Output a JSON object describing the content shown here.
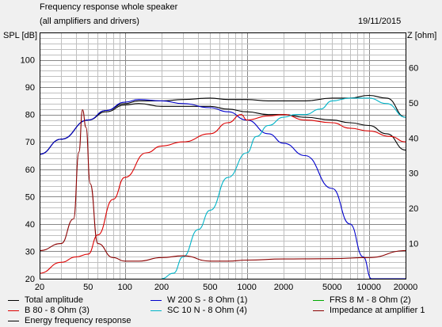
{
  "header": {
    "title": "Frequency response whole speaker",
    "subtitle": "(all amplifiers and drivers)",
    "date": "19/11/2015"
  },
  "chart_data": {
    "type": "line",
    "title": "Frequency response whole speaker",
    "subtitle": "(all amplifiers and drivers)",
    "ylabel": "SPL [dB]",
    "y2label": "Z [ohm]",
    "xlabel": "",
    "x_scale": "log",
    "xlim": [
      20,
      20000
    ],
    "ylim": [
      20,
      110
    ],
    "y2lim": [
      0,
      70
    ],
    "x_ticks": [
      20,
      50,
      100,
      200,
      500,
      1000,
      2000,
      5000,
      10000,
      20000
    ],
    "x_tick_labels": [
      "20",
      "50",
      "100",
      "200",
      "500",
      "1000",
      "2000",
      "5000",
      "10000",
      "20000"
    ],
    "y_ticks": [
      20,
      30,
      40,
      50,
      60,
      70,
      80,
      90,
      100
    ],
    "y_tick_labels": [
      "20",
      "30",
      "40",
      "50",
      "60",
      "70",
      "80",
      "90",
      "100"
    ],
    "y2_ticks": [
      10,
      20,
      30,
      40,
      50,
      60
    ],
    "y2_tick_labels": [
      "10",
      "20",
      "30",
      "40",
      "50",
      "60"
    ],
    "grid": true,
    "legend_position": "bottom",
    "series": [
      {
        "name": "Total amplitude",
        "color": "#000000",
        "axis": "left",
        "x": [
          20,
          30,
          50,
          70,
          100,
          130,
          200,
          300,
          500,
          700,
          1000,
          1500,
          2000,
          3000,
          5000,
          7000,
          10000,
          14000,
          20000
        ],
        "y": [
          65.5,
          71,
          78,
          81.5,
          84,
          85,
          85,
          85.5,
          86,
          85.5,
          85.5,
          85,
          85,
          85,
          86,
          86,
          87,
          86,
          79
        ]
      },
      {
        "name": "Energy frequency response",
        "color": "#000000",
        "axis": "left",
        "x": [
          20,
          30,
          50,
          70,
          100,
          130,
          200,
          300,
          500,
          700,
          1000,
          1500,
          2000,
          3000,
          5000,
          7000,
          10000,
          14000,
          20000
        ],
        "y": [
          65.5,
          71,
          78,
          81,
          83.5,
          84,
          83,
          83,
          83,
          82,
          81,
          80,
          80,
          79,
          78,
          77,
          76,
          73,
          67
        ]
      },
      {
        "name": "W 200 S - 8 Ohm (1)",
        "color": "#0000cc",
        "axis": "left",
        "x": [
          20,
          30,
          50,
          70,
          100,
          130,
          200,
          300,
          500,
          700,
          1000,
          1500,
          2000,
          3000,
          5000,
          7000,
          9000,
          10500,
          20000
        ],
        "y": [
          65.5,
          71,
          78,
          81.5,
          84.5,
          85.5,
          85,
          84,
          82.5,
          81,
          78,
          73,
          69.5,
          65,
          53,
          40,
          28,
          20,
          20
        ]
      },
      {
        "name": "FRS 8 M - 8 Ohm (2)",
        "color": "#00aa00",
        "axis": "left",
        "x": [],
        "y": []
      },
      {
        "name": "B 80 - 8 Ohm (3)",
        "color": "#dd0000",
        "axis": "left",
        "x": [
          20,
          30,
          40,
          50,
          60,
          80,
          100,
          150,
          200,
          300,
          500,
          700,
          900,
          1000,
          1500,
          2000,
          3000,
          5000,
          7000,
          10000,
          15000,
          20000
        ],
        "y": [
          22,
          26,
          28,
          29,
          36,
          49,
          57,
          66,
          68.5,
          70,
          73,
          77,
          80,
          78,
          79.5,
          80,
          78,
          77,
          75,
          74,
          72,
          70
        ]
      },
      {
        "name": "SC 10 N - 8 Ohm (4)",
        "color": "#00b4c8",
        "axis": "left",
        "x": [
          200,
          250,
          300,
          400,
          500,
          700,
          1000,
          1200,
          1500,
          2000,
          2500,
          3000,
          4000,
          5000,
          7000,
          10000,
          14000,
          20000
        ],
        "y": [
          20,
          22,
          28,
          38,
          45,
          57,
          66,
          72,
          76,
          79,
          80,
          80,
          82,
          85,
          86,
          86,
          84,
          79
        ]
      },
      {
        "name": "Impedance at amplifier 1",
        "color": "#8b0000",
        "axis": "right",
        "x": [
          20,
          30,
          38,
          42,
          45,
          48,
          52,
          60,
          80,
          100,
          130,
          200,
          300,
          500,
          700,
          1000,
          2000,
          5000,
          10000,
          20000
        ],
        "y": [
          8,
          10,
          17,
          36,
          48,
          43,
          27,
          10,
          6,
          5,
          5,
          6,
          6.5,
          5,
          5,
          5.3,
          5.6,
          5.7,
          6,
          8
        ]
      }
    ]
  },
  "legend": [
    {
      "label": "Total amplitude",
      "color": "#000000"
    },
    {
      "label": "W 200 S - 8 Ohm (1)",
      "color": "#0000cc"
    },
    {
      "label": "FRS 8 M - 8 Ohm (2)",
      "color": "#00aa00"
    },
    {
      "label": "B 80 - 8 Ohm (3)",
      "color": "#dd0000"
    },
    {
      "label": "SC 10 N - 8 Ohm (4)",
      "color": "#00b4c8"
    },
    {
      "label": "Impedance at amplifier 1",
      "color": "#8b0000"
    },
    {
      "label": "Energy frequency response",
      "color": "#000000"
    }
  ]
}
